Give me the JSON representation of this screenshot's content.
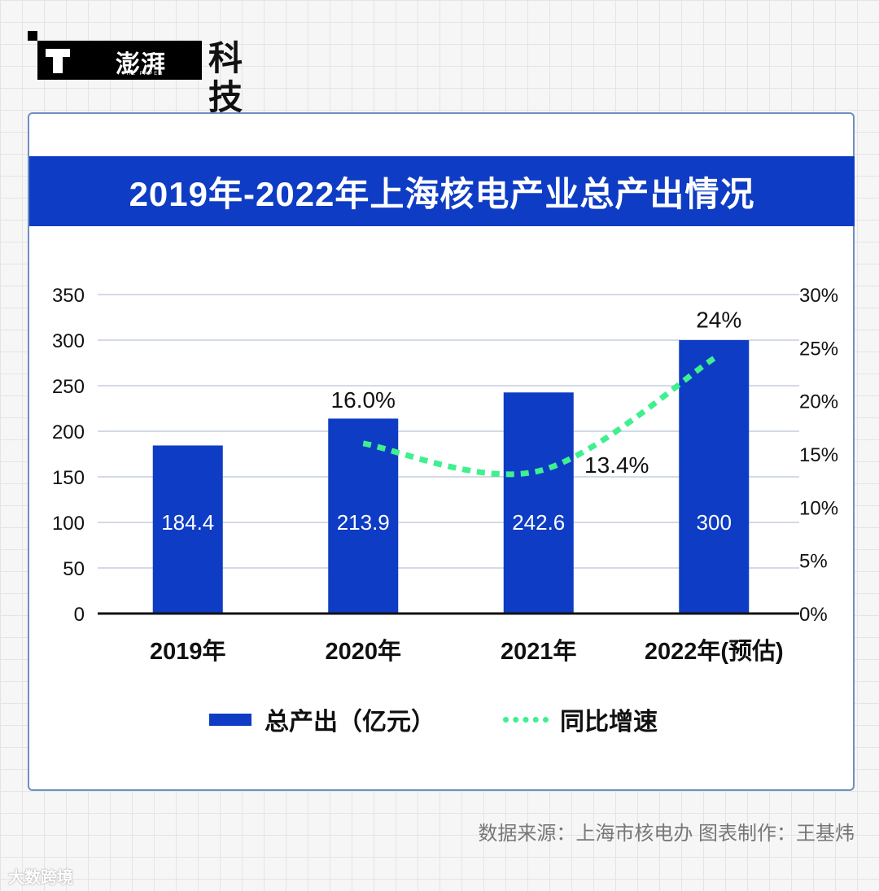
{
  "header": {
    "brand_logo_text": "澎湃",
    "brand_logo_sub": "THE PAPER",
    "section": "科技"
  },
  "chart_data": {
    "type": "bar",
    "title": "2019年-2022年上海核电产业总产出情况",
    "categories": [
      "2019年",
      "2020年",
      "2021年",
      "2022年(预估)"
    ],
    "series": [
      {
        "name": "总产出（亿元）",
        "type": "bar",
        "axis": "left",
        "values": [
          184.4,
          213.9,
          242.6,
          300
        ],
        "labels": [
          "184.4",
          "213.9",
          "242.6",
          "300"
        ],
        "color": "#0e3cc4"
      },
      {
        "name": "同比增速",
        "type": "line",
        "axis": "right",
        "style": "dotted",
        "values": [
          null,
          16.0,
          13.4,
          24
        ],
        "labels": [
          "",
          "16.0%",
          "13.4%",
          "24%"
        ],
        "color": "#3ff08f"
      }
    ],
    "y_left": {
      "ylim": [
        0,
        350
      ],
      "ticks": [
        "0",
        "50",
        "100",
        "150",
        "200",
        "250",
        "300",
        "350"
      ]
    },
    "y_right": {
      "ylim": [
        0,
        30
      ],
      "ticks": [
        "0%",
        "5%",
        "10%",
        "15%",
        "20%",
        "25%",
        "30%"
      ]
    },
    "grid": true,
    "legend_position": "bottom"
  },
  "footer": {
    "source": "数据来源：上海市核电办   图表制作：王基炜",
    "watermark": "大数跨境"
  }
}
